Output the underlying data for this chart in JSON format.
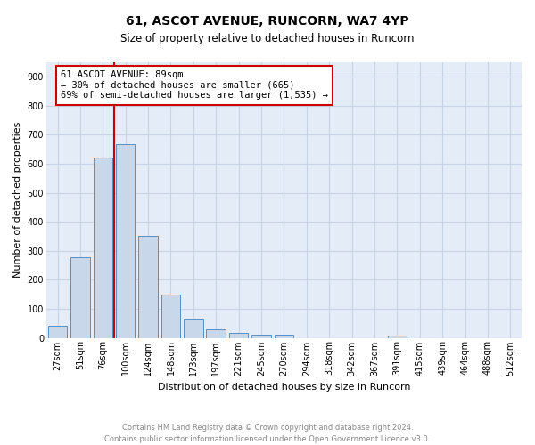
{
  "title1": "61, ASCOT AVENUE, RUNCORN, WA7 4YP",
  "title2": "Size of property relative to detached houses in Runcorn",
  "xlabel": "Distribution of detached houses by size in Runcorn",
  "ylabel": "Number of detached properties",
  "footer": "Contains HM Land Registry data © Crown copyright and database right 2024.\nContains public sector information licensed under the Open Government Licence v3.0.",
  "bar_labels": [
    "27sqm",
    "51sqm",
    "76sqm",
    "100sqm",
    "124sqm",
    "148sqm",
    "173sqm",
    "197sqm",
    "221sqm",
    "245sqm",
    "270sqm",
    "294sqm",
    "318sqm",
    "342sqm",
    "367sqm",
    "391sqm",
    "415sqm",
    "439sqm",
    "464sqm",
    "488sqm",
    "512sqm"
  ],
  "bar_values": [
    42,
    278,
    622,
    668,
    350,
    148,
    65,
    30,
    17,
    12,
    10,
    0,
    0,
    0,
    0,
    9,
    0,
    0,
    0,
    0,
    0
  ],
  "bar_color": "#c8d8ea",
  "bar_edge_color": "#5a8fc0",
  "annotation_text": "61 ASCOT AVENUE: 89sqm\n← 30% of detached houses are smaller (665)\n69% of semi-detached houses are larger (1,535) →",
  "annotation_box_color": "#ffffff",
  "annotation_box_edge": "#cc0000",
  "redline_color": "#cc0000",
  "ylim": [
    0,
    950
  ],
  "yticks": [
    0,
    100,
    200,
    300,
    400,
    500,
    600,
    700,
    800,
    900
  ],
  "grid_color": "#c8d4e4",
  "background_color": "#e4ecf8",
  "title1_fontsize": 10,
  "title2_fontsize": 8.5,
  "xlabel_fontsize": 8,
  "ylabel_fontsize": 8,
  "tick_fontsize": 7,
  "footer_fontsize": 6,
  "footer_color": "#888888",
  "annotation_fontsize": 7.5
}
